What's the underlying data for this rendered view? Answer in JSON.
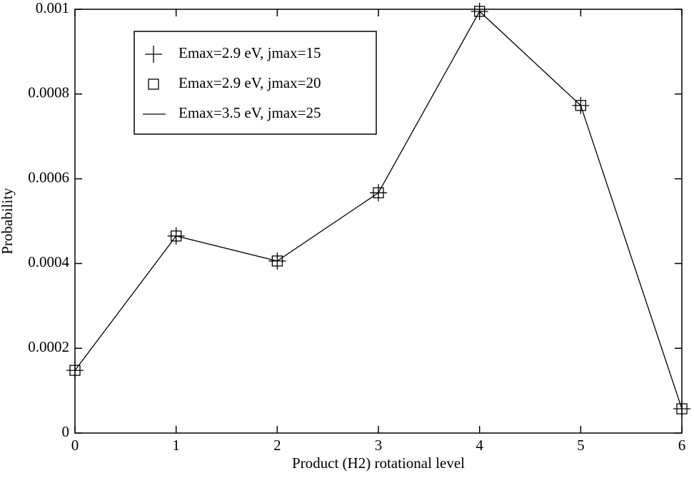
{
  "chart_data": {
    "type": "line",
    "xlabel": "Product (H2) rotational level",
    "ylabel": "Probability",
    "x": [
      0,
      1,
      2,
      3,
      4,
      5,
      6
    ],
    "series": [
      {
        "name": "Emax=2.9 eV, jmax=15",
        "color": "#000000",
        "marker": "plus",
        "line": false,
        "values": [
          0.000148,
          0.000465,
          0.000406,
          0.000567,
          0.000995,
          0.000773,
          5.72e-05
        ]
      },
      {
        "name": "Emax=2.9 eV, jmax=20",
        "color": "#000000",
        "marker": "square",
        "line": false,
        "values": [
          0.000148,
          0.000465,
          0.000406,
          0.000567,
          0.000995,
          0.000773,
          5.72e-05
        ]
      },
      {
        "name": "Emax=3.5 eV, jmax=25",
        "color": "#000000",
        "marker": "none",
        "line": true,
        "values": [
          0.000148,
          0.000465,
          0.000406,
          0.000567,
          0.000995,
          0.000773,
          5.72e-05
        ]
      }
    ],
    "xlim": [
      0,
      6
    ],
    "xticks": [
      0,
      1,
      2,
      3,
      4,
      5,
      6
    ],
    "ylim": [
      0,
      0.001
    ],
    "yticks": [
      0,
      0.0002,
      0.0004,
      0.0006,
      0.0008,
      0.001
    ],
    "grid": false,
    "legend": "upper left"
  }
}
